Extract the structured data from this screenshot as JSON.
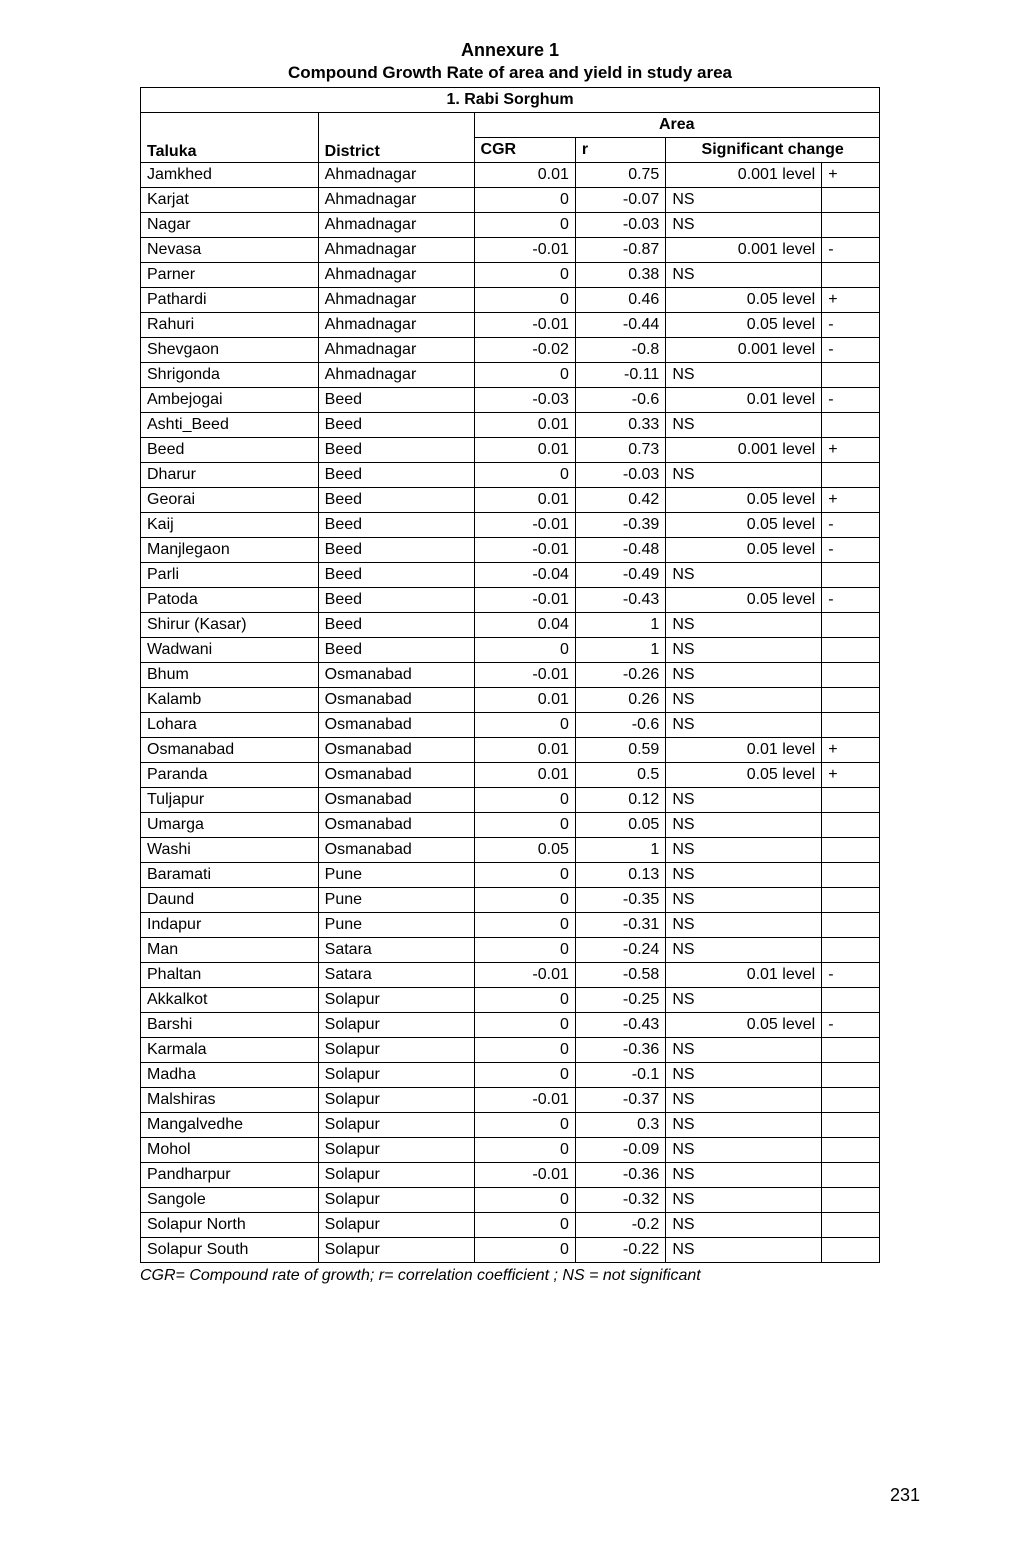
{
  "header": {
    "annexure": "Annexure 1",
    "subtitle": "Compound Growth Rate of area and yield in study area",
    "section": "1.   Rabi Sorghum",
    "area_label": "Area"
  },
  "columns": {
    "taluka": "Taluka",
    "district": "District",
    "cgr": "CGR",
    "r": "r",
    "sig": "Significant change"
  },
  "rows": [
    {
      "taluka": "Jamkhed",
      "district": "Ahmadnagar",
      "cgr": "0.01",
      "r": "0.75",
      "sig": "0.001 level",
      "sign": "+"
    },
    {
      "taluka": "Karjat",
      "district": "Ahmadnagar",
      "cgr": "0",
      "r": "-0.07",
      "sig": "NS",
      "sign": ""
    },
    {
      "taluka": "Nagar",
      "district": "Ahmadnagar",
      "cgr": "0",
      "r": "-0.03",
      "sig": "NS",
      "sign": ""
    },
    {
      "taluka": "Nevasa",
      "district": "Ahmadnagar",
      "cgr": "-0.01",
      "r": "-0.87",
      "sig": "0.001 level",
      "sign": "-"
    },
    {
      "taluka": "Parner",
      "district": "Ahmadnagar",
      "cgr": "0",
      "r": "0.38",
      "sig": "NS",
      "sign": ""
    },
    {
      "taluka": "Pathardi",
      "district": "Ahmadnagar",
      "cgr": "0",
      "r": "0.46",
      "sig": "0.05 level",
      "sign": "+"
    },
    {
      "taluka": "Rahuri",
      "district": "Ahmadnagar",
      "cgr": "-0.01",
      "r": "-0.44",
      "sig": "0.05 level",
      "sign": "-"
    },
    {
      "taluka": "Shevgaon",
      "district": "Ahmadnagar",
      "cgr": "-0.02",
      "r": "-0.8",
      "sig": "0.001 level",
      "sign": "-"
    },
    {
      "taluka": "Shrigonda",
      "district": "Ahmadnagar",
      "cgr": "0",
      "r": "-0.11",
      "sig": "NS",
      "sign": ""
    },
    {
      "taluka": "Ambejogai",
      "district": "Beed",
      "cgr": "-0.03",
      "r": "-0.6",
      "sig": "0.01 level",
      "sign": "-"
    },
    {
      "taluka": "Ashti_Beed",
      "district": "Beed",
      "cgr": "0.01",
      "r": "0.33",
      "sig": "NS",
      "sign": ""
    },
    {
      "taluka": "Beed",
      "district": "Beed",
      "cgr": "0.01",
      "r": "0.73",
      "sig": "0.001 level",
      "sign": "+"
    },
    {
      "taluka": "Dharur",
      "district": "Beed",
      "cgr": "0",
      "r": "-0.03",
      "sig": "NS",
      "sign": ""
    },
    {
      "taluka": "Georai",
      "district": "Beed",
      "cgr": "0.01",
      "r": "0.42",
      "sig": "0.05 level",
      "sign": "+"
    },
    {
      "taluka": "Kaij",
      "district": "Beed",
      "cgr": "-0.01",
      "r": "-0.39",
      "sig": "0.05 level",
      "sign": "-"
    },
    {
      "taluka": "Manjlegaon",
      "district": "Beed",
      "cgr": "-0.01",
      "r": "-0.48",
      "sig": "0.05 level",
      "sign": "-"
    },
    {
      "taluka": "Parli",
      "district": "Beed",
      "cgr": "-0.04",
      "r": "-0.49",
      "sig": "NS",
      "sign": ""
    },
    {
      "taluka": "Patoda",
      "district": "Beed",
      "cgr": "-0.01",
      "r": "-0.43",
      "sig": "0.05 level",
      "sign": "-"
    },
    {
      "taluka": "Shirur (Kasar)",
      "district": "Beed",
      "cgr": "0.04",
      "r": "1",
      "sig": "NS",
      "sign": ""
    },
    {
      "taluka": "Wadwani",
      "district": "Beed",
      "cgr": "0",
      "r": "1",
      "sig": "NS",
      "sign": ""
    },
    {
      "taluka": "Bhum",
      "district": "Osmanabad",
      "cgr": "-0.01",
      "r": "-0.26",
      "sig": "NS",
      "sign": ""
    },
    {
      "taluka": "Kalamb",
      "district": "Osmanabad",
      "cgr": "0.01",
      "r": "0.26",
      "sig": "NS",
      "sign": ""
    },
    {
      "taluka": "Lohara",
      "district": "Osmanabad",
      "cgr": "0",
      "r": "-0.6",
      "sig": "NS",
      "sign": ""
    },
    {
      "taluka": "Osmanabad",
      "district": "Osmanabad",
      "cgr": "0.01",
      "r": "0.59",
      "sig": "0.01 level",
      "sign": "+"
    },
    {
      "taluka": "Paranda",
      "district": "Osmanabad",
      "cgr": "0.01",
      "r": "0.5",
      "sig": "0.05 level",
      "sign": "+"
    },
    {
      "taluka": "Tuljapur",
      "district": "Osmanabad",
      "cgr": "0",
      "r": "0.12",
      "sig": "NS",
      "sign": ""
    },
    {
      "taluka": "Umarga",
      "district": "Osmanabad",
      "cgr": "0",
      "r": "0.05",
      "sig": "NS",
      "sign": ""
    },
    {
      "taluka": "Washi",
      "district": "Osmanabad",
      "cgr": "0.05",
      "r": "1",
      "sig": "NS",
      "sign": ""
    },
    {
      "taluka": "Baramati",
      "district": "Pune",
      "cgr": "0",
      "r": "0.13",
      "sig": "NS",
      "sign": ""
    },
    {
      "taluka": "Daund",
      "district": "Pune",
      "cgr": "0",
      "r": "-0.35",
      "sig": "NS",
      "sign": ""
    },
    {
      "taluka": "Indapur",
      "district": "Pune",
      "cgr": "0",
      "r": "-0.31",
      "sig": "NS",
      "sign": ""
    },
    {
      "taluka": "Man",
      "district": "Satara",
      "cgr": "0",
      "r": "-0.24",
      "sig": "NS",
      "sign": ""
    },
    {
      "taluka": "Phaltan",
      "district": "Satara",
      "cgr": "-0.01",
      "r": "-0.58",
      "sig": "0.01 level",
      "sign": "-"
    },
    {
      "taluka": "Akkalkot",
      "district": "Solapur",
      "cgr": "0",
      "r": "-0.25",
      "sig": "NS",
      "sign": ""
    },
    {
      "taluka": "Barshi",
      "district": "Solapur",
      "cgr": "0",
      "r": "-0.43",
      "sig": "0.05 level",
      "sign": "-"
    },
    {
      "taluka": "Karmala",
      "district": "Solapur",
      "cgr": "0",
      "r": "-0.36",
      "sig": "NS",
      "sign": ""
    },
    {
      "taluka": "Madha",
      "district": "Solapur",
      "cgr": "0",
      "r": "-0.1",
      "sig": "NS",
      "sign": ""
    },
    {
      "taluka": "Malshiras",
      "district": "Solapur",
      "cgr": "-0.01",
      "r": "-0.37",
      "sig": "NS",
      "sign": ""
    },
    {
      "taluka": "Mangalvedhe",
      "district": "Solapur",
      "cgr": "0",
      "r": "0.3",
      "sig": "NS",
      "sign": ""
    },
    {
      "taluka": "Mohol",
      "district": "Solapur",
      "cgr": "0",
      "r": "-0.09",
      "sig": "NS",
      "sign": ""
    },
    {
      "taluka": "Pandharpur",
      "district": "Solapur",
      "cgr": "-0.01",
      "r": "-0.36",
      "sig": "NS",
      "sign": ""
    },
    {
      "taluka": "Sangole",
      "district": "Solapur",
      "cgr": "0",
      "r": "-0.32",
      "sig": "NS",
      "sign": ""
    },
    {
      "taluka": "Solapur North",
      "district": "Solapur",
      "cgr": "0",
      "r": "-0.2",
      "sig": "NS",
      "sign": ""
    },
    {
      "taluka": "Solapur South",
      "district": "Solapur",
      "cgr": "0",
      "r": "-0.22",
      "sig": "NS",
      "sign": ""
    }
  ],
  "footnote": "CGR= Compound rate of growth; r= correlation coefficient ; NS = not significant",
  "page_number": "231"
}
